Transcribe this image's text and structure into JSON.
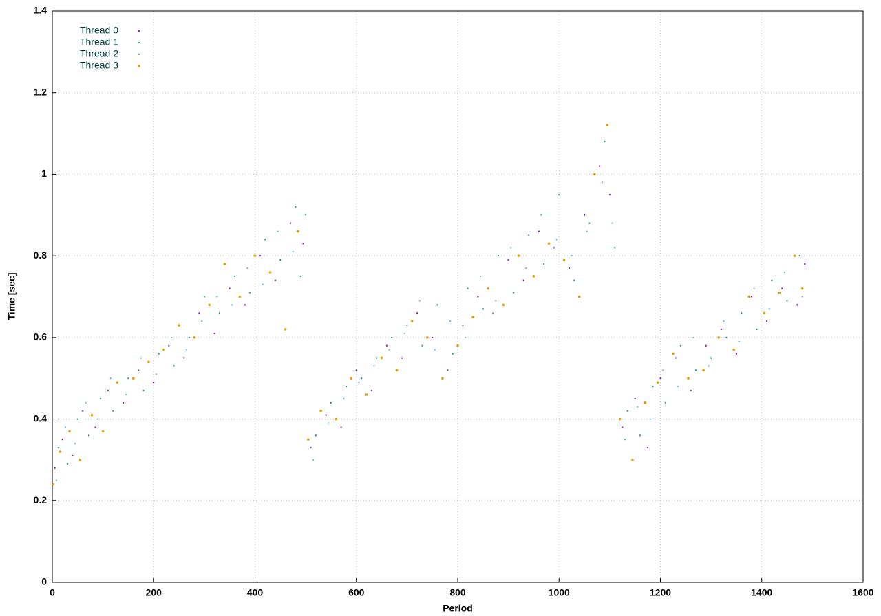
{
  "chart_data": {
    "type": "scatter",
    "xlabel": "Period",
    "ylabel": "Time [sec]",
    "xlim": [
      0,
      1600
    ],
    "xticks": [
      0,
      200,
      400,
      600,
      800,
      1000,
      1200,
      1400,
      1600
    ],
    "ylim": [
      0,
      1.4
    ],
    "yticks": [
      0,
      0.2,
      0.4,
      0.6,
      0.8,
      1,
      1.2,
      1.4
    ],
    "grid": true,
    "legend": "top-left",
    "series": [
      {
        "name": "Thread 0",
        "color": "#9400d3",
        "x": [
          5,
          20,
          40,
          60,
          85,
          110,
          140,
          170,
          200,
          230,
          260,
          290,
          320,
          350,
          380,
          410,
          440,
          470,
          495,
          510,
          540,
          570,
          600,
          630,
          660,
          690,
          720,
          750,
          780,
          810,
          840,
          870,
          900,
          930,
          960,
          990,
          1020,
          1050,
          1080,
          1100,
          1125,
          1150,
          1175,
          1200,
          1230,
          1260,
          1290,
          1320,
          1350,
          1380,
          1410,
          1440,
          1470,
          1485
        ],
        "values": [
          0.28,
          0.35,
          0.31,
          0.42,
          0.38,
          0.47,
          0.44,
          0.52,
          0.49,
          0.58,
          0.55,
          0.66,
          0.61,
          0.72,
          0.68,
          0.8,
          0.74,
          0.88,
          0.83,
          0.33,
          0.41,
          0.38,
          0.52,
          0.47,
          0.58,
          0.55,
          0.66,
          0.6,
          0.52,
          0.63,
          0.7,
          0.66,
          0.79,
          0.74,
          0.86,
          0.82,
          0.77,
          0.9,
          1.02,
          0.95,
          0.38,
          0.45,
          0.33,
          0.5,
          0.55,
          0.47,
          0.58,
          0.62,
          0.56,
          0.7,
          0.64,
          0.72,
          0.68,
          0.78
        ]
      },
      {
        "name": "Thread 1",
        "color": "#009e73",
        "x": [
          12,
          30,
          50,
          72,
          95,
          120,
          150,
          180,
          210,
          240,
          270,
          300,
          330,
          360,
          390,
          420,
          450,
          480,
          490,
          520,
          550,
          580,
          610,
          640,
          670,
          700,
          730,
          760,
          790,
          820,
          850,
          880,
          910,
          940,
          970,
          1000,
          1030,
          1060,
          1090,
          1110,
          1135,
          1160,
          1185,
          1210,
          1240,
          1270,
          1300,
          1330,
          1360,
          1390,
          1420,
          1450,
          1475
        ],
        "values": [
          0.33,
          0.29,
          0.4,
          0.36,
          0.45,
          0.42,
          0.5,
          0.47,
          0.56,
          0.53,
          0.6,
          0.7,
          0.66,
          0.75,
          0.71,
          0.84,
          0.79,
          0.92,
          0.75,
          0.36,
          0.44,
          0.48,
          0.5,
          0.55,
          0.6,
          0.63,
          0.58,
          0.68,
          0.56,
          0.72,
          0.67,
          0.8,
          0.71,
          0.85,
          0.78,
          0.95,
          0.74,
          0.88,
          1.08,
          0.82,
          0.42,
          0.36,
          0.48,
          0.44,
          0.58,
          0.52,
          0.55,
          0.6,
          0.66,
          0.62,
          0.74,
          0.69,
          0.8
        ]
      },
      {
        "name": "Thread 2",
        "color": "#56b4e9",
        "x": [
          8,
          26,
          45,
          66,
          90,
          115,
          145,
          175,
          205,
          235,
          265,
          295,
          325,
          355,
          385,
          415,
          445,
          475,
          500,
          515,
          545,
          575,
          605,
          635,
          665,
          695,
          725,
          755,
          785,
          815,
          845,
          875,
          905,
          935,
          965,
          995,
          1025,
          1055,
          1085,
          1105,
          1130,
          1155,
          1180,
          1205,
          1235,
          1265,
          1295,
          1325,
          1355,
          1385,
          1415,
          1445,
          1480
        ],
        "values": [
          0.25,
          0.38,
          0.34,
          0.44,
          0.4,
          0.5,
          0.46,
          0.55,
          0.51,
          0.6,
          0.57,
          0.64,
          0.7,
          0.68,
          0.77,
          0.73,
          0.86,
          0.81,
          0.9,
          0.3,
          0.39,
          0.45,
          0.49,
          0.53,
          0.57,
          0.61,
          0.69,
          0.57,
          0.64,
          0.6,
          0.75,
          0.69,
          0.82,
          0.77,
          0.9,
          0.84,
          0.8,
          0.86,
          0.98,
          0.88,
          0.35,
          0.43,
          0.4,
          0.52,
          0.48,
          0.6,
          0.53,
          0.64,
          0.59,
          0.72,
          0.67,
          0.76,
          0.7
        ]
      },
      {
        "name": "Thread 3",
        "color": "#e69f00",
        "x": [
          2,
          15,
          34,
          55,
          78,
          100,
          128,
          160,
          190,
          220,
          250,
          280,
          310,
          340,
          370,
          400,
          430,
          460,
          485,
          505,
          530,
          560,
          590,
          620,
          650,
          680,
          710,
          740,
          770,
          800,
          830,
          860,
          890,
          920,
          950,
          980,
          1010,
          1040,
          1070,
          1095,
          1120,
          1145,
          1170,
          1195,
          1225,
          1255,
          1285,
          1315,
          1345,
          1375,
          1405,
          1435,
          1465,
          1480
        ],
        "values": [
          0.24,
          0.32,
          0.37,
          0.3,
          0.41,
          0.37,
          0.49,
          0.5,
          0.54,
          0.57,
          0.63,
          0.6,
          0.68,
          0.78,
          0.7,
          0.8,
          0.76,
          0.62,
          0.86,
          0.35,
          0.42,
          0.4,
          0.5,
          0.46,
          0.55,
          0.52,
          0.64,
          0.6,
          0.5,
          0.58,
          0.65,
          0.72,
          0.68,
          0.8,
          0.75,
          0.83,
          0.79,
          0.7,
          1.0,
          1.12,
          0.4,
          0.3,
          0.44,
          0.49,
          0.56,
          0.5,
          0.52,
          0.6,
          0.57,
          0.7,
          0.66,
          0.71,
          0.8,
          0.72
        ]
      }
    ]
  }
}
